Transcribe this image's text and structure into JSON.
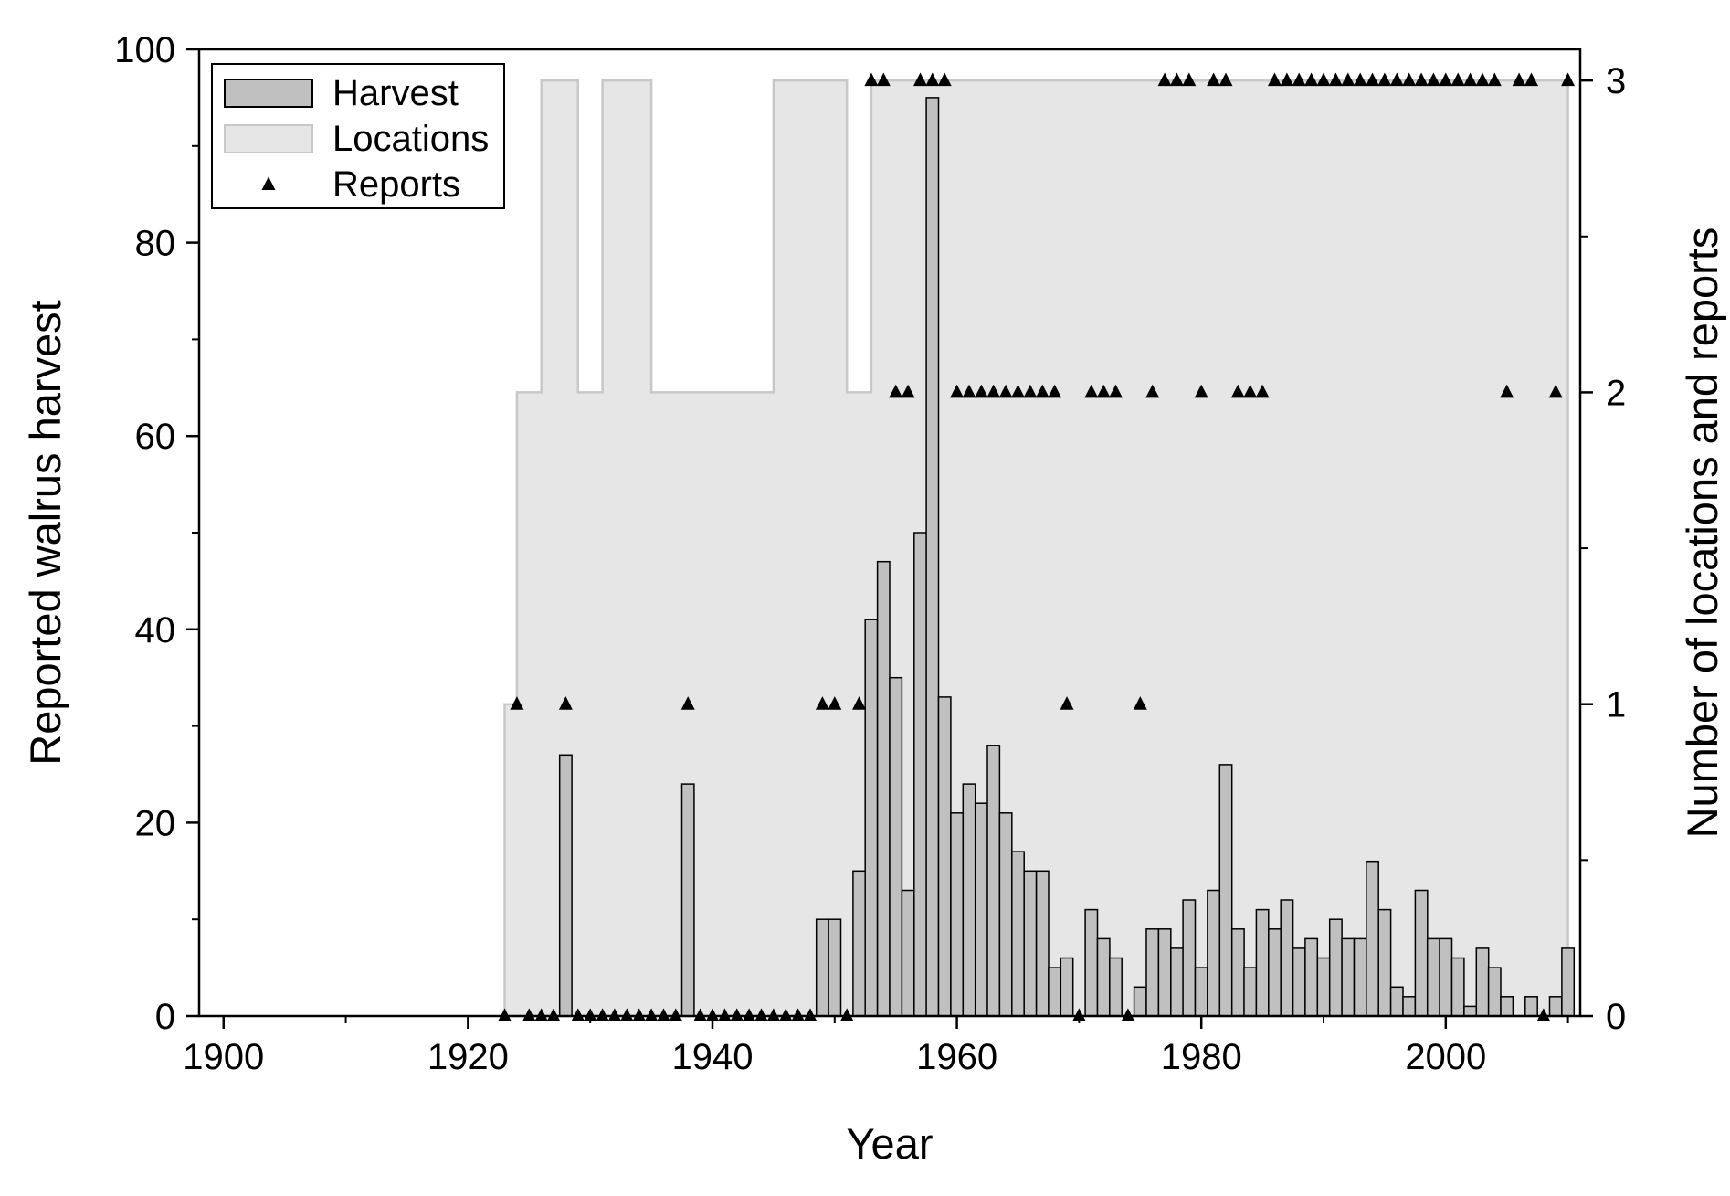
{
  "chart_data": {
    "type": "bar",
    "xlabel": "Year",
    "ylabel": "Reported walrus harvest",
    "y2label": "Number of locations and reports",
    "xlim": [
      1898,
      2011
    ],
    "ylim": [
      0,
      100
    ],
    "y2lim": [
      0,
      3.1
    ],
    "xticks": [
      "1900",
      "1920",
      "1940",
      "1960",
      "1980",
      "2000"
    ],
    "yticks": [
      "0",
      "20",
      "40",
      "60",
      "80",
      "100"
    ],
    "y2ticks": [
      "0",
      "1",
      "2",
      "3"
    ],
    "grid": false,
    "legend_position": "top-left",
    "legend": [
      {
        "label": "Harvest",
        "kind": "bar"
      },
      {
        "label": "Locations",
        "kind": "area"
      },
      {
        "label": "Reports",
        "kind": "triangle"
      }
    ],
    "colors": {
      "harvest_fill": "#c0c0c0",
      "harvest_edge": "#000000",
      "locations_fill": "#e6e6e6",
      "locations_edge": "#c8c8c8",
      "reports": "#000000"
    },
    "series": [
      {
        "name": "Harvest",
        "axis": "left",
        "kind": "bar",
        "points": [
          [
            1928,
            27
          ],
          [
            1938,
            24
          ],
          [
            1949,
            10
          ],
          [
            1950,
            10
          ],
          [
            1952,
            15
          ],
          [
            1953,
            41
          ],
          [
            1954,
            47
          ],
          [
            1955,
            35
          ],
          [
            1956,
            13
          ],
          [
            1957,
            50
          ],
          [
            1958,
            95
          ],
          [
            1959,
            33
          ],
          [
            1960,
            21
          ],
          [
            1961,
            24
          ],
          [
            1962,
            22
          ],
          [
            1963,
            28
          ],
          [
            1964,
            21
          ],
          [
            1965,
            17
          ],
          [
            1966,
            15
          ],
          [
            1967,
            15
          ],
          [
            1968,
            5
          ],
          [
            1969,
            6
          ],
          [
            1971,
            11
          ],
          [
            1972,
            8
          ],
          [
            1973,
            6
          ],
          [
            1975,
            3
          ],
          [
            1976,
            9
          ],
          [
            1977,
            9
          ],
          [
            1978,
            7
          ],
          [
            1979,
            12
          ],
          [
            1980,
            5
          ],
          [
            1981,
            13
          ],
          [
            1982,
            26
          ],
          [
            1983,
            9
          ],
          [
            1984,
            5
          ],
          [
            1985,
            11
          ],
          [
            1986,
            9
          ],
          [
            1987,
            12
          ],
          [
            1988,
            7
          ],
          [
            1989,
            8
          ],
          [
            1990,
            6
          ],
          [
            1991,
            10
          ],
          [
            1992,
            8
          ],
          [
            1993,
            8
          ],
          [
            1994,
            16
          ],
          [
            1995,
            11
          ],
          [
            1996,
            3
          ],
          [
            1997,
            2
          ],
          [
            1998,
            13
          ],
          [
            1999,
            8
          ],
          [
            2000,
            8
          ],
          [
            2001,
            6
          ],
          [
            2002,
            1
          ],
          [
            2003,
            7
          ],
          [
            2004,
            5
          ],
          [
            2005,
            2
          ],
          [
            2007,
            2
          ],
          [
            2009,
            2
          ],
          [
            2010,
            7
          ]
        ]
      },
      {
        "name": "Locations",
        "axis": "right",
        "kind": "step-area",
        "points": [
          [
            1923,
            1
          ],
          [
            1924,
            2
          ],
          [
            1926,
            3
          ],
          [
            1929,
            2
          ],
          [
            1931,
            3
          ],
          [
            1935,
            2
          ],
          [
            1945,
            3
          ],
          [
            1951,
            2
          ],
          [
            1953,
            3
          ],
          [
            2010,
            3
          ]
        ]
      },
      {
        "name": "Reports",
        "axis": "right",
        "kind": "scatter",
        "points": [
          [
            1923,
            0
          ],
          [
            1924,
            1
          ],
          [
            1925,
            0
          ],
          [
            1926,
            0
          ],
          [
            1927,
            0
          ],
          [
            1928,
            1
          ],
          [
            1929,
            0
          ],
          [
            1930,
            0
          ],
          [
            1931,
            0
          ],
          [
            1932,
            0
          ],
          [
            1933,
            0
          ],
          [
            1934,
            0
          ],
          [
            1935,
            0
          ],
          [
            1936,
            0
          ],
          [
            1937,
            0
          ],
          [
            1938,
            1
          ],
          [
            1939,
            0
          ],
          [
            1940,
            0
          ],
          [
            1941,
            0
          ],
          [
            1942,
            0
          ],
          [
            1943,
            0
          ],
          [
            1944,
            0
          ],
          [
            1945,
            0
          ],
          [
            1946,
            0
          ],
          [
            1947,
            0
          ],
          [
            1948,
            0
          ],
          [
            1949,
            1
          ],
          [
            1950,
            1
          ],
          [
            1951,
            0
          ],
          [
            1952,
            1
          ],
          [
            1953,
            3
          ],
          [
            1954,
            3
          ],
          [
            1955,
            2
          ],
          [
            1956,
            2
          ],
          [
            1957,
            3
          ],
          [
            1958,
            3
          ],
          [
            1959,
            3
          ],
          [
            1960,
            2
          ],
          [
            1961,
            2
          ],
          [
            1962,
            2
          ],
          [
            1963,
            2
          ],
          [
            1964,
            2
          ],
          [
            1965,
            2
          ],
          [
            1966,
            2
          ],
          [
            1967,
            2
          ],
          [
            1968,
            2
          ],
          [
            1969,
            1
          ],
          [
            1970,
            0
          ],
          [
            1971,
            2
          ],
          [
            1972,
            2
          ],
          [
            1973,
            2
          ],
          [
            1974,
            0
          ],
          [
            1975,
            1
          ],
          [
            1976,
            2
          ],
          [
            1977,
            3
          ],
          [
            1978,
            3
          ],
          [
            1979,
            3
          ],
          [
            1980,
            2
          ],
          [
            1981,
            3
          ],
          [
            1982,
            3
          ],
          [
            1983,
            2
          ],
          [
            1984,
            2
          ],
          [
            1985,
            2
          ],
          [
            1986,
            3
          ],
          [
            1987,
            3
          ],
          [
            1988,
            3
          ],
          [
            1989,
            3
          ],
          [
            1990,
            3
          ],
          [
            1991,
            3
          ],
          [
            1992,
            3
          ],
          [
            1993,
            3
          ],
          [
            1994,
            3
          ],
          [
            1995,
            3
          ],
          [
            1996,
            3
          ],
          [
            1997,
            3
          ],
          [
            1998,
            3
          ],
          [
            1999,
            3
          ],
          [
            2000,
            3
          ],
          [
            2001,
            3
          ],
          [
            2002,
            3
          ],
          [
            2003,
            3
          ],
          [
            2004,
            3
          ],
          [
            2005,
            2
          ],
          [
            2006,
            3
          ],
          [
            2007,
            3
          ],
          [
            2008,
            0
          ],
          [
            2009,
            2
          ],
          [
            2010,
            3
          ]
        ]
      }
    ]
  }
}
